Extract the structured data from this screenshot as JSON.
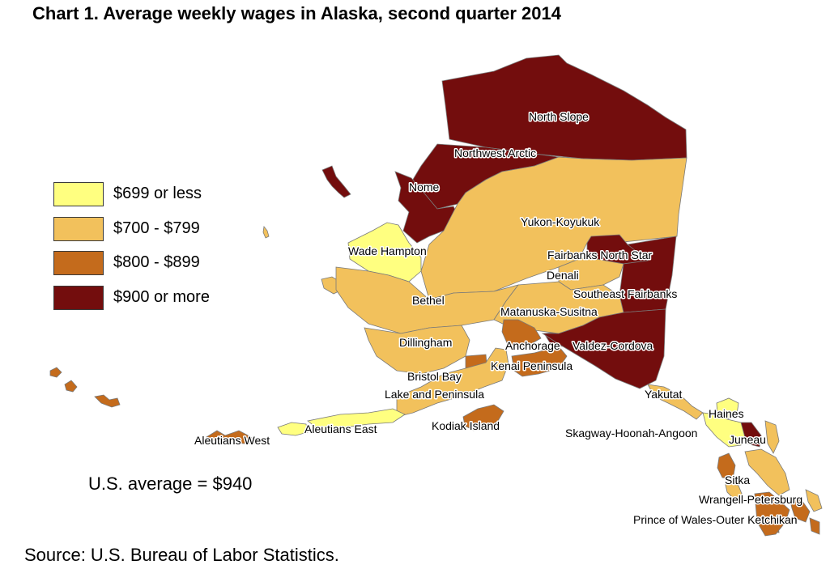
{
  "title": "Chart 1. Average weekly wages in Alaska, second quarter 2014",
  "colors": {
    "cat_0": "#ffff80",
    "cat_1": "#f2c15c",
    "cat_2": "#c46b1c",
    "cat_3": "#730d0d",
    "border": "#7a7a7a"
  },
  "legend": [
    {
      "label": "$699 or less",
      "color_key": "cat_0"
    },
    {
      "label": "$700 - $799",
      "color_key": "cat_1"
    },
    {
      "label": "$800 - $899",
      "color_key": "cat_2"
    },
    {
      "label": "$900 or more",
      "color_key": "cat_3"
    }
  ],
  "us_average": "U.S. average = $940",
  "source": "Source: U.S. Bureau of Labor Statistics.",
  "regions": [
    {
      "name": "North Slope",
      "category": 3
    },
    {
      "name": "Northwest Arctic",
      "category": 3
    },
    {
      "name": "Nome",
      "category": 3
    },
    {
      "name": "Yukon-Koyukuk",
      "category": 1
    },
    {
      "name": "Wade Hampton",
      "category": 0
    },
    {
      "name": "Fairbanks North Star",
      "category": 3
    },
    {
      "name": "Denali",
      "category": 1
    },
    {
      "name": "Southeast Fairbanks",
      "category": 3
    },
    {
      "name": "Bethel",
      "category": 1
    },
    {
      "name": "Matanuska-Susitna",
      "category": 1
    },
    {
      "name": "Dillingham",
      "category": 1
    },
    {
      "name": "Anchorage",
      "category": 2
    },
    {
      "name": "Valdez-Cordova",
      "category": 3
    },
    {
      "name": "Kenai Peninsula",
      "category": 2
    },
    {
      "name": "Bristol Bay",
      "category": 2
    },
    {
      "name": "Lake and Peninsula",
      "category": 1
    },
    {
      "name": "Kodiak Island",
      "category": 2
    },
    {
      "name": "Aleutians East",
      "category": 0
    },
    {
      "name": "Aleutians West",
      "category": 2
    },
    {
      "name": "Yakutat",
      "category": 1
    },
    {
      "name": "Haines",
      "category": 0
    },
    {
      "name": "Skagway-Hoonah-Angoon",
      "category": 0
    },
    {
      "name": "Juneau",
      "category": 3
    },
    {
      "name": "Sitka",
      "category": 2
    },
    {
      "name": "Wrangell-Petersburg",
      "category": 1
    },
    {
      "name": "Prince of Wales-Outer Ketchikan",
      "category": 2
    },
    {
      "name": "Ketchikan",
      "category": 2
    }
  ]
}
